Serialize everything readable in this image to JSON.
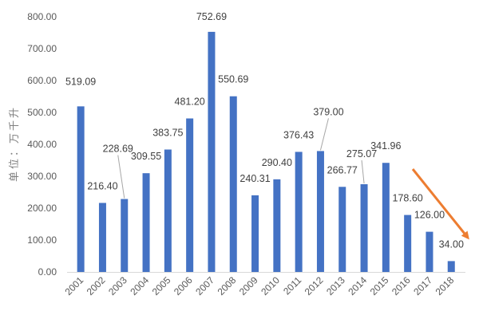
{
  "chart_data": {
    "type": "bar",
    "ylabel": "单位：万千升",
    "ylim": [
      0,
      800
    ],
    "yticks": [
      "0.00",
      "100.00",
      "200.00",
      "300.00",
      "400.00",
      "500.00",
      "600.00",
      "700.00",
      "800.00"
    ],
    "categories": [
      "2001",
      "2002",
      "2003",
      "2004",
      "2005",
      "2006",
      "2007",
      "2008",
      "2009",
      "2010",
      "2011",
      "2012",
      "2013",
      "2014",
      "2015",
      "2016",
      "2017",
      "2018"
    ],
    "values": [
      519.09,
      216.4,
      228.69,
      309.55,
      383.75,
      481.2,
      752.69,
      550.69,
      240.31,
      290.4,
      376.43,
      379.0,
      266.77,
      275.07,
      341.96,
      178.6,
      126.0,
      34.0
    ],
    "labels": [
      "519.09",
      "216.40",
      "228.69",
      "309.55",
      "383.75",
      "481.20",
      "752.69",
      "550.69",
      "240.31",
      "290.40",
      "376.43",
      "379.00",
      "266.77",
      "275.07",
      "341.96",
      "178.60",
      "126.00",
      "34.00"
    ],
    "grid": false,
    "bar_color": "#4472C4",
    "trend_arrow_color": "#ED7D31"
  }
}
